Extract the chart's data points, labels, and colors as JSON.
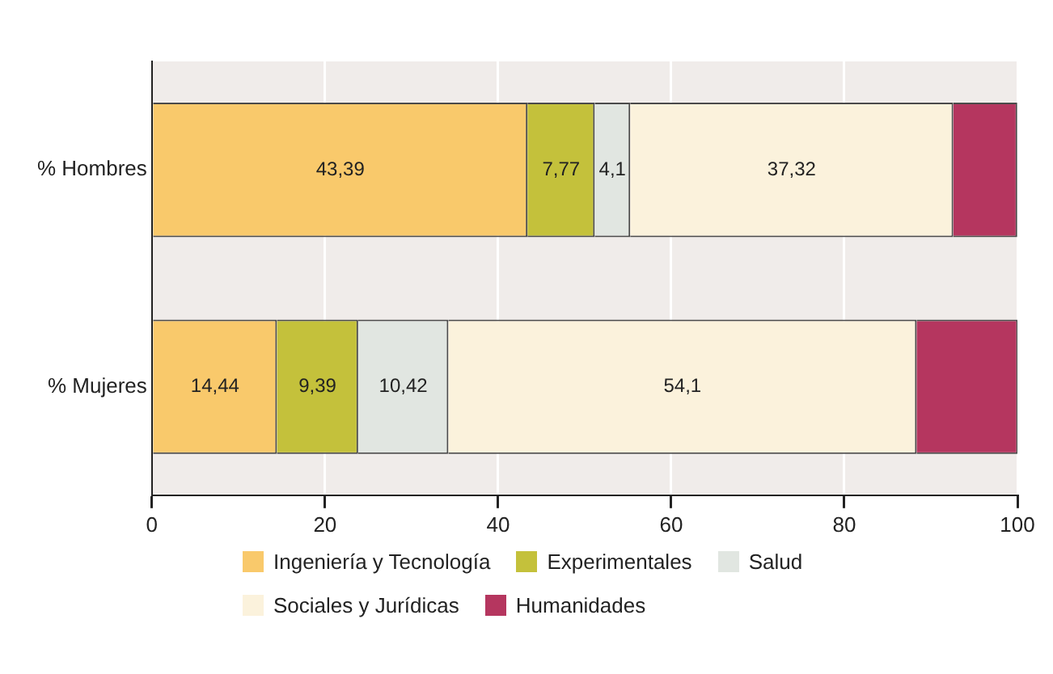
{
  "chart_data": {
    "type": "bar",
    "orientation": "horizontal",
    "stacked": true,
    "categories": [
      "% Hombres",
      "% Mujeres"
    ],
    "series": [
      {
        "name": "Ingeniería y Tecnología",
        "color": "#f9c96b",
        "values": [
          43.39,
          14.44
        ],
        "value_labels": [
          "43,39",
          "14,44"
        ]
      },
      {
        "name": "Experimentales",
        "color": "#c4c13b",
        "values": [
          7.77,
          9.39
        ],
        "value_labels": [
          "7,77",
          "9,39"
        ]
      },
      {
        "name": "Salud",
        "color": "#e1e6e1",
        "values": [
          4.1,
          10.42
        ],
        "value_labels": [
          "4,1",
          "10,42"
        ]
      },
      {
        "name": "Sociales y Jurídicas",
        "color": "#fbf2dc",
        "values": [
          37.32,
          54.1
        ],
        "value_labels": [
          "37,32",
          "54,1"
        ]
      },
      {
        "name": "Humanidades",
        "color": "#b5365f",
        "values": [
          7.4,
          11.7
        ],
        "value_labels": [
          null,
          null
        ]
      }
    ],
    "xlim": [
      0,
      100
    ],
    "xticks": [
      0,
      20,
      40,
      60,
      80,
      100
    ],
    "grid": "x",
    "legend": "bottom"
  }
}
